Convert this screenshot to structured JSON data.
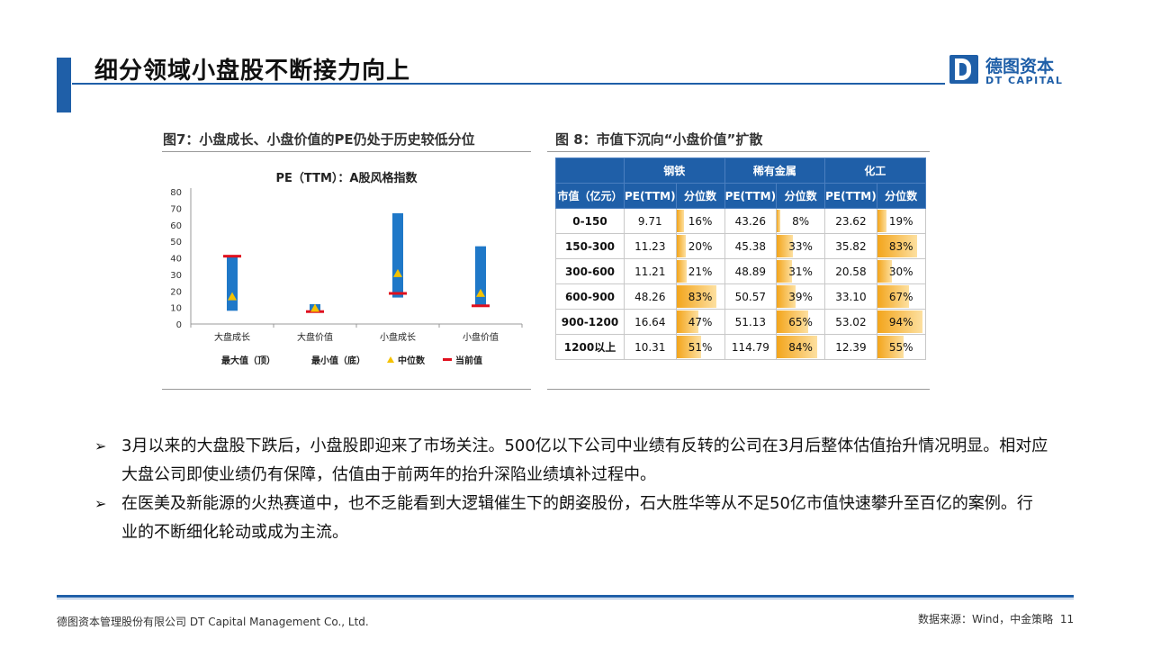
{
  "header": {
    "title": "细分领域小盘股不断接力向上",
    "logo_cn": "德图资本",
    "logo_en": "DT CAPITAL"
  },
  "figure7": {
    "caption": "图7：小盘成长、小盘价值的PE仍处于历史较低分位"
  },
  "figure8": {
    "caption": "图 8：市值下沉向“小盘价值”扩散",
    "groups": [
      "钢铁",
      "稀有金属",
      "化工"
    ],
    "row_header": "市值（亿元）",
    "col_pe": "PE(TTM)",
    "col_pct": "分位数",
    "rows": [
      {
        "label": "0-150",
        "steel_pe": "9.71",
        "steel_pct": "16%",
        "metal_pe": "43.26",
        "metal_pct": "8%",
        "chem_pe": "23.62",
        "chem_pct": "19%"
      },
      {
        "label": "150-300",
        "steel_pe": "11.23",
        "steel_pct": "20%",
        "metal_pe": "45.38",
        "metal_pct": "33%",
        "chem_pe": "35.82",
        "chem_pct": "83%"
      },
      {
        "label": "300-600",
        "steel_pe": "11.21",
        "steel_pct": "21%",
        "metal_pe": "48.89",
        "metal_pct": "31%",
        "chem_pe": "20.58",
        "chem_pct": "30%"
      },
      {
        "label": "600-900",
        "steel_pe": "48.26",
        "steel_pct": "83%",
        "metal_pe": "50.57",
        "metal_pct": "39%",
        "chem_pe": "33.10",
        "chem_pct": "67%"
      },
      {
        "label": "900-1200",
        "steel_pe": "16.64",
        "steel_pct": "47%",
        "metal_pe": "51.13",
        "metal_pct": "65%",
        "chem_pe": "53.02",
        "chem_pct": "94%"
      },
      {
        "label": "1200以上",
        "steel_pe": "10.31",
        "steel_pct": "51%",
        "metal_pe": "114.79",
        "metal_pct": "84%",
        "chem_pe": "12.39",
        "chem_pct": "55%"
      }
    ]
  },
  "chart_data": {
    "type": "bar",
    "title": "PE（TTM）：A股风格指数",
    "categories": [
      "大盘成长",
      "大盘价值",
      "小盘成长",
      "小盘价值"
    ],
    "ylim": [
      0,
      80
    ],
    "yticks": [
      0,
      10,
      20,
      30,
      40,
      50,
      60,
      70,
      80
    ],
    "series": [
      {
        "name": "最大值（顶）",
        "values": [
          41,
          12,
          67,
          47
        ]
      },
      {
        "name": "最小值（底）",
        "values": [
          8,
          7,
          16,
          11
        ]
      },
      {
        "name": "中位数",
        "values": [
          16,
          9,
          30,
          18
        ]
      },
      {
        "name": "当前值",
        "values": [
          41,
          7.5,
          18.5,
          11
        ]
      }
    ],
    "legend": [
      "最大值（顶）",
      "最小值（底）",
      "中位数",
      "当前值"
    ],
    "colors": {
      "bar": "#1f78c8",
      "median": "#f5c200",
      "current": "#e0101e"
    }
  },
  "bullets": [
    "3月以来的大盘股下跌后，小盘股即迎来了市场关注。500亿以下公司中业绩有反转的公司在3月后整体估值抬升情况明显。相对应大盘公司即使业绩仍有保障，估值由于前两年的抬升深陷业绩填补过程中。",
    "在医美及新能源的火热赛道中，也不乏能看到大逻辑催生下的朗姿股份，石大胜华等从不足50亿市值快速攀升至百亿的案例。行业的不断细化轮动或成为主流。"
  ],
  "footer": {
    "company": "德图资本管理股份有限公司  DT Capital Management  Co., Ltd.",
    "source": "数据来源：Wind，中金策略",
    "page": "11"
  }
}
